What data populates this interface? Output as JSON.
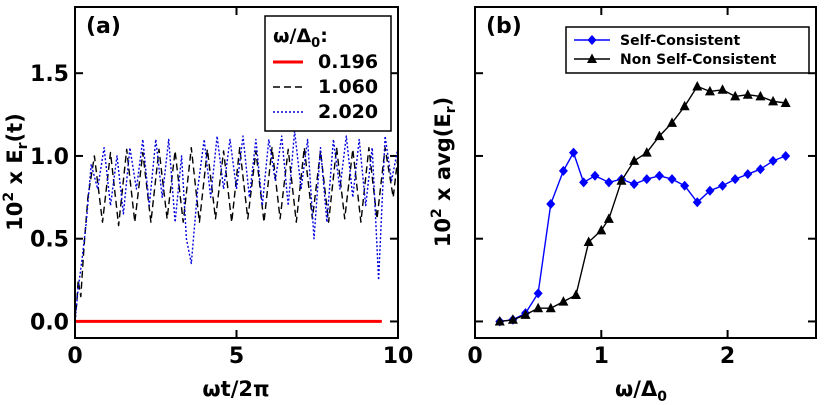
{
  "chart_data": [
    {
      "type": "line",
      "panel_label": "(a)",
      "xlabel": "ωt/2π",
      "ylabel_prefix": "10",
      "ylabel_exp": "2",
      "ylabel_main": " x E",
      "ylabel_sub": "r",
      "ylabel_tail": "(t)",
      "xlim": [
        0,
        10
      ],
      "ylim": [
        -0.1,
        1.9
      ],
      "x_ticks": [
        0,
        5,
        10
      ],
      "x_tick_labels": [
        "0",
        "5",
        "10"
      ],
      "y_ticks": [
        0.0,
        0.5,
        1.0,
        1.5
      ],
      "y_tick_labels": [
        "0.0",
        "0.5",
        "1.0",
        "1.5"
      ],
      "legend": {
        "title_prefix": "ω/Δ",
        "title_sub": "0",
        "title_suffix": ":",
        "position": "top-right"
      },
      "series": [
        {
          "name": "0.196",
          "color": "#ff0000",
          "style": "solid",
          "x": [
            0.0,
            0.5,
            1.0,
            1.5,
            2.0,
            2.5,
            3.0,
            3.5,
            4.0,
            4.5,
            5.0,
            5.5,
            6.0,
            6.5,
            7.0,
            7.5,
            8.0,
            8.5,
            9.0,
            9.5
          ],
          "y": [
            0.0,
            0.0,
            0.0,
            0.0,
            0.0,
            0.0,
            0.0,
            0.0,
            0.0,
            0.0,
            0.0,
            0.0,
            0.0,
            0.0,
            0.0,
            0.0,
            0.0,
            0.0,
            0.0,
            0.0
          ]
        },
        {
          "name": "1.060",
          "color": "#000000",
          "style": "dashed",
          "x": [
            0.0,
            0.05,
            0.1,
            0.18,
            0.28,
            0.4,
            0.6,
            0.85,
            1.1,
            1.35,
            1.6,
            1.85,
            2.1,
            2.35,
            2.6,
            2.85,
            3.1,
            3.35,
            3.6,
            3.85,
            4.1,
            4.35,
            4.6,
            4.85,
            5.1,
            5.35,
            5.6,
            5.85,
            6.1,
            6.35,
            6.6,
            6.85,
            7.1,
            7.35,
            7.6,
            7.85,
            8.1,
            8.35,
            8.6,
            8.85,
            9.1,
            9.35,
            9.6,
            9.85,
            10.0
          ],
          "y": [
            0.0,
            0.1,
            0.25,
            0.15,
            0.45,
            0.75,
            1.0,
            0.6,
            1.02,
            0.58,
            1.04,
            0.6,
            1.02,
            0.6,
            1.04,
            0.62,
            1.03,
            0.6,
            1.05,
            0.6,
            1.04,
            0.62,
            1.03,
            0.6,
            1.05,
            0.62,
            1.03,
            0.6,
            1.05,
            0.62,
            1.04,
            0.6,
            1.05,
            0.62,
            1.03,
            0.6,
            1.05,
            0.62,
            1.04,
            0.6,
            1.05,
            0.62,
            1.05,
            0.75,
            1.0
          ]
        },
        {
          "name": "2.020",
          "color": "#0000dd",
          "style": "dotted",
          "x": [
            0.0,
            0.1,
            0.2,
            0.35,
            0.5,
            0.7,
            0.9,
            1.1,
            1.3,
            1.5,
            1.7,
            1.9,
            2.1,
            2.3,
            2.5,
            2.7,
            2.9,
            3.1,
            3.3,
            3.45,
            3.6,
            3.8,
            4.0,
            4.2,
            4.4,
            4.6,
            4.8,
            5.0,
            5.2,
            5.4,
            5.6,
            5.8,
            6.0,
            6.2,
            6.4,
            6.6,
            6.8,
            7.0,
            7.2,
            7.4,
            7.6,
            7.8,
            8.0,
            8.2,
            8.4,
            8.6,
            8.8,
            9.0,
            9.2,
            9.4,
            9.6,
            9.8,
            10.0
          ],
          "y": [
            0.0,
            0.2,
            0.35,
            0.6,
            0.95,
            0.8,
            1.05,
            0.7,
            1.0,
            0.65,
            1.05,
            0.8,
            1.1,
            0.7,
            1.1,
            0.75,
            1.1,
            0.6,
            1.0,
            0.5,
            0.35,
            0.8,
            1.1,
            0.75,
            1.12,
            0.8,
            1.1,
            0.8,
            1.12,
            0.75,
            1.1,
            0.7,
            1.1,
            0.85,
            1.12,
            0.7,
            1.15,
            0.8,
            1.1,
            0.5,
            1.05,
            0.6,
            1.1,
            0.8,
            1.12,
            0.75,
            1.1,
            0.7,
            1.05,
            0.25,
            1.12,
            0.85,
            1.05
          ]
        }
      ]
    },
    {
      "type": "line",
      "panel_label": "(b)",
      "xlabel_prefix": "ω/Δ",
      "xlabel_sub": "0",
      "ylabel_prefix": "10",
      "ylabel_exp": "2",
      "ylabel_main": " x avg(E",
      "ylabel_sub": "r",
      "ylabel_tail": ")",
      "xlim": [
        0,
        2.7
      ],
      "ylim": [
        -0.1,
        1.9
      ],
      "x_ticks": [
        0,
        1,
        2
      ],
      "x_tick_labels": [
        "0",
        "1",
        "2"
      ],
      "y_ticks": [
        0.0,
        0.5,
        1.0,
        1.5
      ],
      "y_tick_labels": [],
      "legend": {
        "position": "top-right"
      },
      "series": [
        {
          "name": "Self-Consistent",
          "color": "#0000ff",
          "marker": "diamond",
          "x": [
            0.196,
            0.3,
            0.4,
            0.5,
            0.6,
            0.7,
            0.78,
            0.86,
            0.95,
            1.06,
            1.16,
            1.26,
            1.36,
            1.46,
            1.56,
            1.66,
            1.76,
            1.86,
            1.96,
            2.06,
            2.16,
            2.26,
            2.36,
            2.46
          ],
          "y": [
            0.0,
            0.01,
            0.05,
            0.17,
            0.71,
            0.91,
            1.02,
            0.84,
            0.88,
            0.84,
            0.86,
            0.83,
            0.86,
            0.88,
            0.86,
            0.82,
            0.72,
            0.79,
            0.82,
            0.86,
            0.89,
            0.92,
            0.97,
            1.0
          ]
        },
        {
          "name": "Non Self-Consistent",
          "color": "#000000",
          "marker": "triangle",
          "x": [
            0.196,
            0.3,
            0.4,
            0.5,
            0.6,
            0.7,
            0.8,
            0.9,
            1.0,
            1.06,
            1.16,
            1.26,
            1.36,
            1.46,
            1.56,
            1.66,
            1.76,
            1.86,
            1.96,
            2.06,
            2.16,
            2.26,
            2.36,
            2.46
          ],
          "y": [
            0.0,
            0.01,
            0.04,
            0.08,
            0.08,
            0.12,
            0.16,
            0.48,
            0.55,
            0.62,
            0.85,
            0.97,
            1.02,
            1.12,
            1.2,
            1.3,
            1.42,
            1.39,
            1.4,
            1.36,
            1.37,
            1.36,
            1.33,
            1.32
          ]
        }
      ]
    }
  ]
}
